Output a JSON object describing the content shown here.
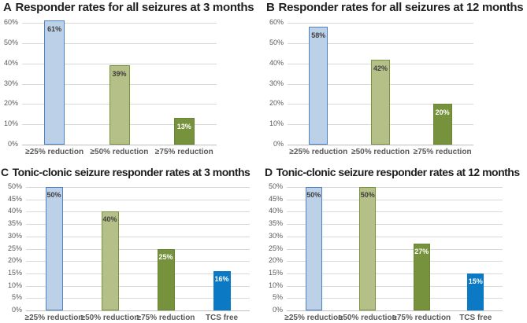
{
  "figure": {
    "background": "#ffffff"
  },
  "colors": {
    "grid_line": "#d9d9d9",
    "axis_line": "#bfbfbf",
    "tick_text": "#595959",
    "category_text": "#595959",
    "title_text": "#1f1f1f"
  },
  "chart_data": [
    {
      "panel": "A",
      "type": "bar",
      "title": "Responder rates for all seizures at 3 months",
      "ylim": [
        0,
        60
      ],
      "ytick_step": 10,
      "ytick_labels": [
        "0%",
        "10%",
        "20%",
        "30%",
        "40%",
        "50%",
        "60%"
      ],
      "grid": true,
      "bars": [
        {
          "category": "≥25% reduction",
          "value": 61,
          "label": "61%",
          "fill": "#bcd1e8",
          "border": "#4f81bd",
          "label_color": "#3f3f3f"
        },
        {
          "category": "≥50% reduction",
          "value": 39,
          "label": "39%",
          "fill": "#b5bf88",
          "border": "#77933c",
          "label_color": "#3f3f3f"
        },
        {
          "category": "≥75% reduction",
          "value": 13,
          "label": "13%",
          "fill": "#76923c",
          "border": "#6a8435",
          "label_color": "#ffffff"
        }
      ]
    },
    {
      "panel": "B",
      "type": "bar",
      "title": "Responder rates for all seizures at 12 months",
      "ylim": [
        0,
        60
      ],
      "ytick_step": 10,
      "ytick_labels": [
        "0%",
        "10%",
        "20%",
        "30%",
        "40%",
        "50%",
        "60%"
      ],
      "grid": true,
      "bars": [
        {
          "category": "≥25% reduction",
          "value": 58,
          "label": "58%",
          "fill": "#bcd1e8",
          "border": "#4f81bd",
          "label_color": "#3f3f3f"
        },
        {
          "category": "≥50% reduction",
          "value": 42,
          "label": "42%",
          "fill": "#b5bf88",
          "border": "#77933c",
          "label_color": "#3f3f3f"
        },
        {
          "category": "≥75% reduction",
          "value": 20,
          "label": "20%",
          "fill": "#76923c",
          "border": "#6a8435",
          "label_color": "#ffffff"
        }
      ]
    },
    {
      "panel": "C",
      "type": "bar",
      "title": "Tonic-clonic seizure responder rates at 3 months",
      "ylim": [
        0,
        50
      ],
      "ytick_step": 5,
      "ytick_labels": [
        "0%",
        "5%",
        "10%",
        "15%",
        "20%",
        "25%",
        "30%",
        "35%",
        "40%",
        "45%",
        "50%"
      ],
      "grid": true,
      "bars": [
        {
          "category": "≥25% reduction",
          "value": 50,
          "label": "50%",
          "fill": "#bcd1e8",
          "border": "#4f81bd",
          "label_color": "#3f3f3f"
        },
        {
          "category": "≥50% reduction",
          "value": 40,
          "label": "40%",
          "fill": "#b5bf88",
          "border": "#77933c",
          "label_color": "#3f3f3f"
        },
        {
          "category": "≥75% reduction",
          "value": 25,
          "label": "25%",
          "fill": "#76923c",
          "border": "#6a8435",
          "label_color": "#ffffff"
        },
        {
          "category": "TCS free",
          "value": 16,
          "label": "16%",
          "fill": "#0b79c4",
          "border": "#0b79c4",
          "label_color": "#ffffff"
        }
      ]
    },
    {
      "panel": "D",
      "type": "bar",
      "title": "Tonic-clonic seizure responder rates at 12 months",
      "ylim": [
        0,
        50
      ],
      "ytick_step": 5,
      "ytick_labels": [
        "0%",
        "5%",
        "10%",
        "15%",
        "20%",
        "25%",
        "30%",
        "35%",
        "40%",
        "45%",
        "50%"
      ],
      "grid": true,
      "bars": [
        {
          "category": "≥25% reduction",
          "value": 50,
          "label": "50%",
          "fill": "#bcd1e8",
          "border": "#4f81bd",
          "label_color": "#3f3f3f"
        },
        {
          "category": "≥50% reduction",
          "value": 50,
          "label": "50%",
          "fill": "#b5bf88",
          "border": "#77933c",
          "label_color": "#3f3f3f"
        },
        {
          "category": "≥75% reduction",
          "value": 27,
          "label": "27%",
          "fill": "#76923c",
          "border": "#6a8435",
          "label_color": "#ffffff"
        },
        {
          "category": "TCS free",
          "value": 15,
          "label": "15%",
          "fill": "#0b79c4",
          "border": "#0b79c4",
          "label_color": "#ffffff"
        }
      ]
    }
  ]
}
